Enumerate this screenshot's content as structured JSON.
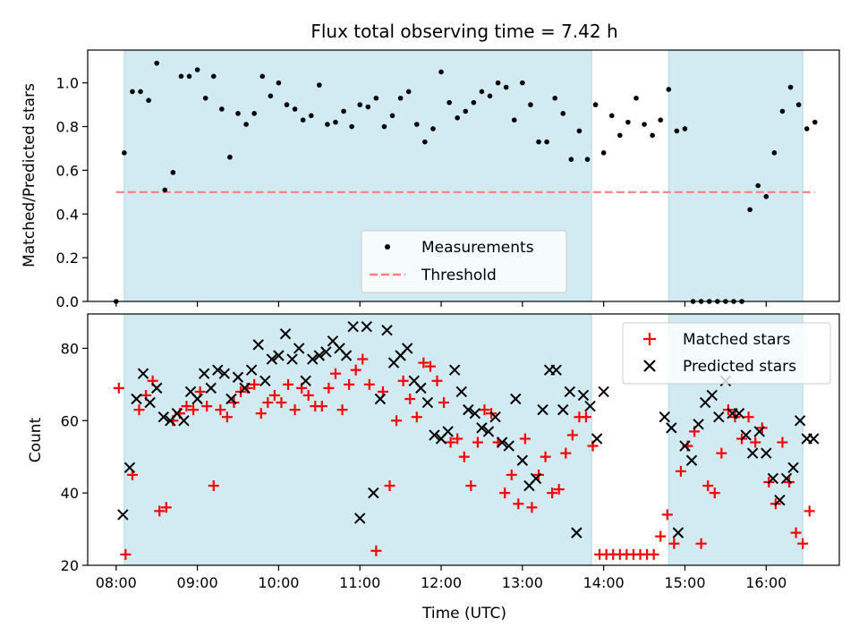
{
  "title": "Flux total observing time = 7.42 h",
  "colors": {
    "shade": "#add8e6",
    "threshold": "#ff7f7f",
    "measurement": "#000000",
    "matched": "#ff0000",
    "predicted": "#000000"
  },
  "chart_data": [
    {
      "type": "scatter",
      "ylabel": "Matched/Predicted stars",
      "ylim": [
        0,
        1.15
      ],
      "y_ticks": [
        "0.0",
        "0.2",
        "0.4",
        "0.6",
        "0.8",
        "1.0"
      ],
      "xlim": [
        "07:39",
        "16:54"
      ],
      "shaded_intervals": [
        [
          "08:06",
          "13:51"
        ],
        [
          "14:48",
          "16:27"
        ]
      ],
      "threshold": 0.5,
      "legend": {
        "position": "lower center",
        "entries": [
          "Measurements",
          "Threshold"
        ]
      },
      "series": [
        {
          "name": "Measurements",
          "x": [
            "08:00",
            "08:06",
            "08:12",
            "08:18",
            "08:24",
            "08:30",
            "08:36",
            "08:42",
            "08:48",
            "08:54",
            "09:00",
            "09:06",
            "09:12",
            "09:18",
            "09:24",
            "09:30",
            "09:36",
            "09:42",
            "09:48",
            "09:54",
            "10:00",
            "10:06",
            "10:12",
            "10:18",
            "10:24",
            "10:30",
            "10:36",
            "10:42",
            "10:48",
            "10:54",
            "11:00",
            "11:06",
            "11:12",
            "11:18",
            "11:24",
            "11:30",
            "11:36",
            "11:42",
            "11:48",
            "11:54",
            "12:00",
            "12:06",
            "12:12",
            "12:18",
            "12:24",
            "12:30",
            "12:36",
            "12:42",
            "12:48",
            "12:54",
            "13:00",
            "13:06",
            "13:12",
            "13:18",
            "13:24",
            "13:30",
            "13:36",
            "13:42",
            "13:48",
            "13:54",
            "14:00",
            "14:06",
            "14:12",
            "14:18",
            "14:24",
            "14:30",
            "14:36",
            "14:42",
            "14:48",
            "14:54",
            "15:00",
            "15:06",
            "15:12",
            "15:18",
            "15:24",
            "15:30",
            "15:36",
            "15:42",
            "15:48",
            "15:54",
            "16:00",
            "16:06",
            "16:12",
            "16:18",
            "16:24",
            "16:30",
            "16:36"
          ],
          "y": [
            0.0,
            0.68,
            0.96,
            0.96,
            0.92,
            1.09,
            0.51,
            0.59,
            1.03,
            1.03,
            1.06,
            0.93,
            1.03,
            0.88,
            0.66,
            0.86,
            0.81,
            0.86,
            1.03,
            0.94,
            1.0,
            0.9,
            0.88,
            0.83,
            0.85,
            0.99,
            0.81,
            0.82,
            0.87,
            0.8,
            0.9,
            0.89,
            0.93,
            0.8,
            0.85,
            0.93,
            0.96,
            0.81,
            0.73,
            0.79,
            1.05,
            0.91,
            0.84,
            0.87,
            0.91,
            0.96,
            0.94,
            1.0,
            0.98,
            0.83,
            1.0,
            0.9,
            0.73,
            0.73,
            0.93,
            0.86,
            0.65,
            0.78,
            0.65,
            0.9,
            0.68,
            0.85,
            0.76,
            0.82,
            0.93,
            0.81,
            0.76,
            0.83,
            0.97,
            0.78,
            0.79,
            0.0,
            0.0,
            0.0,
            0.0,
            0.0,
            0.0,
            0.0,
            0.42,
            0.53,
            0.48,
            0.68,
            0.87,
            0.98,
            0.9,
            0.79,
            0.82
          ]
        }
      ]
    },
    {
      "type": "scatter",
      "xlabel": "Time (UTC)",
      "ylabel": "Count",
      "ylim": [
        20,
        89.5
      ],
      "y_ticks": [
        "20",
        "40",
        "60",
        "80"
      ],
      "x_ticks": [
        "08:00",
        "09:00",
        "10:00",
        "11:00",
        "12:00",
        "13:00",
        "14:00",
        "15:00",
        "16:00"
      ],
      "xlim": [
        "07:39",
        "16:54"
      ],
      "shaded_intervals": [
        [
          "08:06",
          "13:51"
        ],
        [
          "14:48",
          "16:27"
        ]
      ],
      "legend": {
        "position": "upper right",
        "entries": [
          "Matched stars",
          "Predicted stars"
        ]
      },
      "series": [
        {
          "name": "Matched stars",
          "x": [
            "08:02",
            "08:07",
            "08:12",
            "08:17",
            "08:22",
            "08:27",
            "08:32",
            "08:37",
            "08:42",
            "08:47",
            "08:52",
            "08:57",
            "09:02",
            "09:07",
            "09:12",
            "09:17",
            "09:22",
            "09:27",
            "09:32",
            "09:37",
            "09:42",
            "09:47",
            "09:52",
            "09:57",
            "10:02",
            "10:07",
            "10:12",
            "10:17",
            "10:22",
            "10:27",
            "10:32",
            "10:37",
            "10:42",
            "10:47",
            "10:52",
            "10:57",
            "11:02",
            "11:07",
            "11:12",
            "11:17",
            "11:22",
            "11:27",
            "11:32",
            "11:37",
            "11:42",
            "11:47",
            "11:52",
            "11:57",
            "12:02",
            "12:07",
            "12:12",
            "12:17",
            "12:22",
            "12:27",
            "12:32",
            "12:37",
            "12:42",
            "12:47",
            "12:52",
            "12:57",
            "13:02",
            "13:07",
            "13:12",
            "13:17",
            "13:22",
            "13:27",
            "13:32",
            "13:37",
            "13:42",
            "13:47",
            "13:52",
            "13:57",
            "14:02",
            "14:07",
            "14:12",
            "14:17",
            "14:22",
            "14:27",
            "14:32",
            "14:37",
            "14:42",
            "14:47",
            "14:52",
            "14:57",
            "15:02",
            "15:07",
            "15:12",
            "15:17",
            "15:22",
            "15:27",
            "15:32",
            "15:37",
            "15:42",
            "15:47",
            "15:52",
            "15:57",
            "16:02",
            "16:07",
            "16:12",
            "16:17",
            "16:22",
            "16:27",
            "16:32"
          ],
          "y": [
            69,
            23,
            45,
            63,
            67,
            71,
            35,
            36,
            60,
            62,
            64,
            63,
            68,
            64,
            42,
            63,
            61,
            65,
            68,
            69,
            70,
            62,
            65,
            67,
            65,
            70,
            63,
            69,
            67,
            64,
            64,
            69,
            73,
            63,
            70,
            74,
            77,
            70,
            24,
            68,
            42,
            60,
            71,
            66,
            61,
            76,
            75,
            71,
            65,
            54,
            55,
            50,
            42,
            54,
            63,
            62,
            54,
            40,
            45,
            37,
            55,
            36,
            45,
            50,
            40,
            41,
            51,
            56,
            61,
            61,
            53,
            23,
            23,
            23,
            23,
            23,
            23,
            23,
            23,
            23,
            28,
            34,
            26,
            46,
            53,
            57,
            26,
            42,
            40,
            51,
            63,
            61,
            55,
            61,
            54,
            58,
            43,
            37,
            54,
            43,
            29,
            26,
            35
          ]
        },
        {
          "name": "Predicted stars",
          "x": [
            "08:05",
            "08:10",
            "08:15",
            "08:20",
            "08:25",
            "08:30",
            "08:35",
            "08:40",
            "08:45",
            "08:50",
            "08:55",
            "09:00",
            "09:05",
            "09:10",
            "09:15",
            "09:20",
            "09:25",
            "09:30",
            "09:35",
            "09:40",
            "09:45",
            "09:50",
            "09:55",
            "10:00",
            "10:05",
            "10:10",
            "10:15",
            "10:20",
            "10:25",
            "10:30",
            "10:35",
            "10:40",
            "10:45",
            "10:50",
            "10:55",
            "11:00",
            "11:05",
            "11:10",
            "11:15",
            "11:20",
            "11:25",
            "11:30",
            "11:35",
            "11:40",
            "11:45",
            "11:50",
            "11:55",
            "12:00",
            "12:05",
            "12:10",
            "12:15",
            "12:20",
            "12:25",
            "12:30",
            "12:35",
            "12:40",
            "12:45",
            "12:50",
            "12:55",
            "13:00",
            "13:05",
            "13:10",
            "13:15",
            "13:20",
            "13:25",
            "13:30",
            "13:35",
            "13:40",
            "13:45",
            "13:50",
            "13:55",
            "14:00",
            "14:45",
            "14:50",
            "14:55",
            "15:00",
            "15:05",
            "15:10",
            "15:15",
            "15:20",
            "15:25",
            "15:30",
            "15:35",
            "15:40",
            "15:45",
            "15:50",
            "15:55",
            "16:00",
            "16:05",
            "16:10",
            "16:15",
            "16:20",
            "16:25",
            "16:30",
            "16:35"
          ],
          "y": [
            34,
            47,
            66,
            73,
            65,
            69,
            61,
            60,
            62,
            60,
            68,
            66,
            73,
            69,
            74,
            73,
            66,
            72,
            69,
            74,
            81,
            71,
            77,
            78,
            84,
            77,
            80,
            71,
            77,
            78,
            79,
            82,
            80,
            78,
            86,
            33,
            86,
            40,
            66,
            85,
            76,
            78,
            80,
            71,
            69,
            65,
            56,
            55,
            57,
            74,
            68,
            63,
            62,
            58,
            57,
            61,
            54,
            53,
            66,
            49,
            42,
            44,
            63,
            74,
            74,
            63,
            68,
            29,
            67,
            64,
            55,
            68,
            61,
            58,
            29,
            53,
            49,
            59,
            65,
            67,
            61,
            71,
            62,
            62,
            56,
            51,
            57,
            51,
            44,
            38,
            44,
            47,
            60,
            55,
            55
          ]
        }
      ]
    }
  ]
}
